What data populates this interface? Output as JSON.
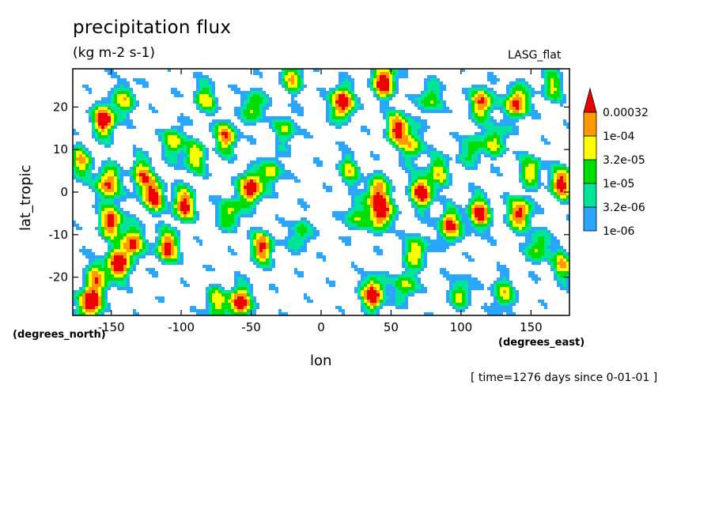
{
  "chart_data": {
    "type": "heatmap",
    "title": "precipitation flux",
    "units": "(kg m-2 s-1)",
    "model_label": "LASG_flat",
    "xlabel": "lon",
    "ylabel": "lat_tropic",
    "x_units_label": "(degrees_east)",
    "y_units_label": "(degrees_north)",
    "time_label": "[ time=1276 days since 0-01-01 ]",
    "xlim": [
      -177.5,
      177.5
    ],
    "ylim": [
      -29,
      29
    ],
    "x_ticks": [
      -150,
      -100,
      -50,
      0,
      50,
      100,
      150
    ],
    "x_tick_labels": [
      "-150",
      "-100",
      "-50",
      "0",
      "50",
      "100",
      "150"
    ],
    "y_ticks": [
      -20,
      -10,
      0,
      10,
      20
    ],
    "y_tick_labels": [
      "-20",
      "-10",
      "0",
      "10",
      "20"
    ],
    "colorbar": {
      "levels": [
        "1e-06",
        "3.2e-06",
        "1e-05",
        "3.2e-05",
        "1e-04",
        "0.00032"
      ],
      "level_values": [
        1e-06,
        3.2e-06,
        1e-05,
        3.2e-05,
        0.0001,
        0.00032
      ],
      "colors": [
        "#2aa6ff",
        "#00e59a",
        "#00dd00",
        "#ffff00",
        "#ff9900",
        "#ee0000"
      ]
    },
    "features": [
      {
        "lon": -172,
        "lat": 7,
        "amp": 1.8
      },
      {
        "lon": -165,
        "lat": -26,
        "amp": 3.2
      },
      {
        "lon": -160,
        "lat": -20,
        "amp": 1.8
      },
      {
        "lon": -155,
        "lat": 17,
        "amp": 3.0
      },
      {
        "lon": -152,
        "lat": 2,
        "amp": 2.5
      },
      {
        "lon": -150,
        "lat": -7,
        "amp": 2.6
      },
      {
        "lon": -145,
        "lat": -17,
        "amp": 2.8
      },
      {
        "lon": -140,
        "lat": 22,
        "amp": 1.5
      },
      {
        "lon": -135,
        "lat": -12,
        "amp": 2.4
      },
      {
        "lon": -128,
        "lat": 4,
        "amp": 2.0
      },
      {
        "lon": -120,
        "lat": -1,
        "amp": 2.6
      },
      {
        "lon": -110,
        "lat": -13,
        "amp": 2.6
      },
      {
        "lon": -105,
        "lat": 12,
        "amp": 1.6
      },
      {
        "lon": -98,
        "lat": -3,
        "amp": 2.6
      },
      {
        "lon": -90,
        "lat": 8,
        "amp": 1.7
      },
      {
        "lon": -83,
        "lat": 22,
        "amp": 1.5
      },
      {
        "lon": -75,
        "lat": -26,
        "amp": 1.6
      },
      {
        "lon": -68,
        "lat": 13,
        "amp": 2.2
      },
      {
        "lon": -65,
        "lat": -5,
        "amp": 1.6
      },
      {
        "lon": -58,
        "lat": -26,
        "amp": 2.8
      },
      {
        "lon": -50,
        "lat": 1,
        "amp": 3.0
      },
      {
        "lon": -48,
        "lat": 20,
        "amp": 1.6
      },
      {
        "lon": -42,
        "lat": -13,
        "amp": 2.4
      },
      {
        "lon": -35,
        "lat": 5,
        "amp": 1.4
      },
      {
        "lon": -25,
        "lat": 15,
        "amp": 1.3
      },
      {
        "lon": -20,
        "lat": 27,
        "amp": 1.7
      },
      {
        "lon": -15,
        "lat": -10,
        "amp": 1.2
      },
      {
        "lon": 15,
        "lat": 21,
        "amp": 3.0
      },
      {
        "lon": 20,
        "lat": 5,
        "amp": 1.4
      },
      {
        "lon": 25,
        "lat": -6,
        "amp": 1.3
      },
      {
        "lon": 37,
        "lat": -24,
        "amp": 3.0
      },
      {
        "lon": 40,
        "lat": 0,
        "amp": 2.2
      },
      {
        "lon": 43,
        "lat": -5,
        "amp": 2.8
      },
      {
        "lon": 45,
        "lat": 26,
        "amp": 3.0
      },
      {
        "lon": 55,
        "lat": 15,
        "amp": 2.6
      },
      {
        "lon": 60,
        "lat": -22,
        "amp": 1.5
      },
      {
        "lon": 65,
        "lat": 11,
        "amp": 1.6
      },
      {
        "lon": 68,
        "lat": -14,
        "amp": 1.8
      },
      {
        "lon": 72,
        "lat": 0,
        "amp": 2.8
      },
      {
        "lon": 78,
        "lat": 22,
        "amp": 1.4
      },
      {
        "lon": 85,
        "lat": 5,
        "amp": 1.5
      },
      {
        "lon": 92,
        "lat": -8,
        "amp": 2.5
      },
      {
        "lon": 100,
        "lat": -24,
        "amp": 1.4
      },
      {
        "lon": 108,
        "lat": 10,
        "amp": 1.3
      },
      {
        "lon": 113,
        "lat": -5,
        "amp": 2.6
      },
      {
        "lon": 115,
        "lat": 21,
        "amp": 2.4
      },
      {
        "lon": 125,
        "lat": 12,
        "amp": 1.5
      },
      {
        "lon": 130,
        "lat": -24,
        "amp": 1.6
      },
      {
        "lon": 140,
        "lat": 21,
        "amp": 2.6
      },
      {
        "lon": 142,
        "lat": -5,
        "amp": 2.6
      },
      {
        "lon": 150,
        "lat": 5,
        "amp": 1.6
      },
      {
        "lon": 155,
        "lat": -13,
        "amp": 1.5
      },
      {
        "lon": 165,
        "lat": 25,
        "amp": 1.4
      },
      {
        "lon": 172,
        "lat": 2,
        "amp": 2.6
      },
      {
        "lon": 173,
        "lat": -17,
        "amp": 1.7
      }
    ]
  }
}
